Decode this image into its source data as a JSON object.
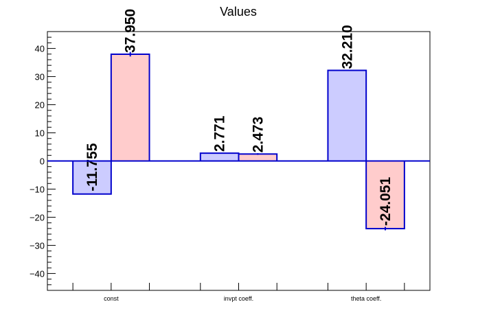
{
  "chart_data": {
    "type": "bar",
    "title": "Values",
    "categories": [
      "const",
      "invpt coeff.",
      "theta coeff."
    ],
    "series": [
      {
        "values": [
          -11.755,
          2.771,
          32.21
        ],
        "labels": [
          "-11.755",
          "2.771",
          "32.210"
        ],
        "errors": [
          0,
          0,
          0
        ],
        "fill": "#ccccff",
        "stroke": "#0000cc"
      },
      {
        "values": [
          37.95,
          2.473,
          -24.051
        ],
        "labels": [
          "37.950",
          "2.473",
          "-24.051"
        ],
        "errors": [
          0.8,
          0.3,
          0.6
        ],
        "fill": "#ffcccc",
        "stroke": "#0000cc"
      }
    ],
    "xlabel": "",
    "ylabel": "",
    "ylim": [
      -46,
      46
    ],
    "yticks": [
      -40,
      -30,
      -20,
      -10,
      0,
      10,
      20,
      30,
      40
    ],
    "ytick_labels": [
      "−40",
      "−30",
      "−20",
      "−10",
      "0",
      "10",
      "20",
      "30",
      "40"
    ],
    "grid": false,
    "legend": "none",
    "zero_line_color": "#0000cc"
  }
}
